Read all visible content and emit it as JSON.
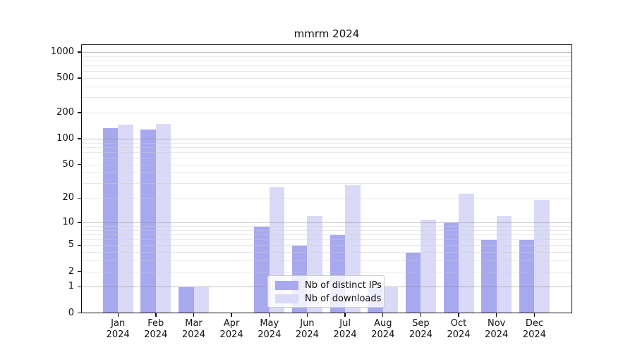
{
  "title": "mmrm 2024",
  "legend": {
    "items": [
      {
        "label": "Nb of distinct IPs",
        "color": "#a8a8ef"
      },
      {
        "label": "Nb of downloads",
        "color": "#dadaf8"
      }
    ]
  },
  "y_axis": {
    "ticks": [
      0,
      1,
      2,
      5,
      10,
      20,
      50,
      100,
      200,
      500,
      1000
    ]
  },
  "x_axis": {
    "categories": [
      {
        "month": "Jan",
        "year": "2024"
      },
      {
        "month": "Feb",
        "year": "2024"
      },
      {
        "month": "Mar",
        "year": "2024"
      },
      {
        "month": "Apr",
        "year": "2024"
      },
      {
        "month": "May",
        "year": "2024"
      },
      {
        "month": "Jun",
        "year": "2024"
      },
      {
        "month": "Jul",
        "year": "2024"
      },
      {
        "month": "Aug",
        "year": "2024"
      },
      {
        "month": "Sep",
        "year": "2024"
      },
      {
        "month": "Oct",
        "year": "2024"
      },
      {
        "month": "Nov",
        "year": "2024"
      },
      {
        "month": "Dec",
        "year": "2024"
      }
    ]
  },
  "chart_data": {
    "type": "bar",
    "title": "mmrm 2024",
    "categories": [
      "Jan 2024",
      "Feb 2024",
      "Mar 2024",
      "Apr 2024",
      "May 2024",
      "Jun 2024",
      "Jul 2024",
      "Aug 2024",
      "Sep 2024",
      "Oct 2024",
      "Nov 2024",
      "Dec 2024"
    ],
    "series": [
      {
        "name": "Nb of distinct IPs",
        "color": "#a8a8ef",
        "values": [
          135,
          129,
          1,
          0,
          9,
          5,
          7,
          1,
          4,
          10,
          6,
          6
        ]
      },
      {
        "name": "Nb of downloads",
        "color": "#dadaf8",
        "values": [
          146,
          149,
          1,
          0,
          27,
          12,
          29,
          1,
          11,
          23,
          12,
          19
        ]
      }
    ],
    "xlabel": "",
    "ylabel": "",
    "y_scale": "log1p",
    "y_ticks": [
      0,
      1,
      2,
      5,
      10,
      20,
      50,
      100,
      200,
      500,
      1000
    ],
    "ylim": [
      0,
      1000
    ],
    "grid": "horizontal major (1,10,100,1000) + minor (2-9 per decade)",
    "legend_position": "inside plot, lower middle"
  }
}
